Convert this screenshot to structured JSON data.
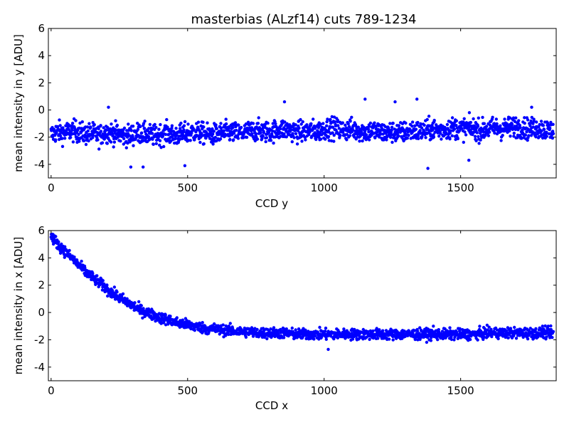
{
  "figure_title": "masterbias (ALzf14) cuts 789-1234",
  "colors": {
    "marker": "#0000ff",
    "axes": "#000000",
    "background": "#ffffff"
  },
  "chart_data": [
    {
      "type": "scatter",
      "title": "masterbias (ALzf14) cuts 789-1234",
      "xlabel": "CCD y",
      "ylabel": "mean intensity in y [ADU]",
      "xlim": [
        -10,
        1850
      ],
      "ylim": [
        -5,
        6
      ],
      "xticks": [
        0,
        500,
        1000,
        1500
      ],
      "yticks": [
        -4,
        -2,
        0,
        2,
        4,
        6
      ],
      "grid": false,
      "series": [
        {
          "x": [
            0,
            25,
            50,
            75,
            100,
            125,
            150,
            175,
            200,
            225,
            250,
            275,
            300,
            325,
            350,
            375,
            400,
            425,
            450,
            475,
            500,
            525,
            550,
            575,
            600,
            625,
            650,
            675,
            700,
            725,
            750,
            775,
            800,
            825,
            850,
            875,
            900,
            925,
            950,
            975,
            1000,
            1025,
            1050,
            1075,
            1100,
            1125,
            1150,
            1175,
            1200,
            1225,
            1250,
            1275,
            1300,
            1325,
            1350,
            1375,
            1400,
            1425,
            1450,
            1475,
            1500,
            1525,
            1550,
            1575,
            1600,
            1625,
            1650,
            1675,
            1700,
            1725,
            1750,
            1775,
            1800,
            1825,
            1840
          ],
          "y": [
            -1.8,
            -1.6,
            -1.7,
            -1.5,
            -1.6,
            -1.8,
            -1.7,
            -1.9,
            -1.6,
            -1.7,
            -1.8,
            -1.9,
            -1.8,
            -1.7,
            -1.8,
            -1.9,
            -1.8,
            -1.7,
            -1.9,
            -1.8,
            -1.7,
            -1.6,
            -1.7,
            -1.8,
            -1.8,
            -1.7,
            -1.6,
            -1.7,
            -1.7,
            -1.6,
            -1.5,
            -1.6,
            -1.6,
            -1.5,
            -1.4,
            -1.5,
            -1.6,
            -1.6,
            -1.5,
            -1.6,
            -1.4,
            -1.3,
            -1.4,
            -1.5,
            -1.4,
            -1.5,
            -1.6,
            -1.5,
            -1.6,
            -1.7,
            -1.6,
            -1.7,
            -1.6,
            -1.5,
            -1.6,
            -1.5,
            -1.4,
            -1.5,
            -1.4,
            -1.3,
            -1.4,
            -1.3,
            -1.4,
            -1.5,
            -1.4,
            -1.3,
            -1.4,
            -1.3,
            -1.2,
            -1.3,
            -1.4,
            -1.3,
            -1.4,
            -1.5,
            -1.4
          ],
          "spread": 0.7,
          "outliers": [
            [
              855,
              0.6
            ],
            [
              1150,
              0.8
            ],
            [
              1260,
              0.6
            ],
            [
              1340,
              0.8
            ],
            [
              292,
              -4.2
            ],
            [
              337,
              -4.2
            ],
            [
              490,
              -4.1
            ],
            [
              1380,
              -4.3
            ],
            [
              1530,
              -3.7
            ],
            [
              210,
              0.2
            ],
            [
              1760,
              0.2
            ]
          ]
        }
      ]
    },
    {
      "type": "scatter",
      "xlabel": "CCD x",
      "ylabel": "mean intensity in x [ADU]",
      "xlim": [
        -10,
        1850
      ],
      "ylim": [
        -5,
        6
      ],
      "xticks": [
        0,
        500,
        1000,
        1500
      ],
      "yticks": [
        -4,
        -2,
        0,
        2,
        4,
        6
      ],
      "grid": false,
      "series": [
        {
          "x": [
            0,
            25,
            50,
            75,
            100,
            125,
            150,
            175,
            200,
            225,
            250,
            275,
            300,
            325,
            350,
            375,
            400,
            425,
            450,
            475,
            500,
            525,
            550,
            575,
            600,
            625,
            650,
            675,
            700,
            725,
            750,
            775,
            800,
            850,
            900,
            950,
            1000,
            1050,
            1100,
            1150,
            1200,
            1250,
            1300,
            1350,
            1400,
            1450,
            1500,
            1550,
            1600,
            1650,
            1700,
            1750,
            1800,
            1840
          ],
          "y": [
            5.6,
            5.0,
            4.5,
            4.0,
            3.5,
            3.0,
            2.6,
            2.2,
            1.8,
            1.4,
            1.1,
            0.8,
            0.5,
            0.2,
            0.0,
            -0.2,
            -0.4,
            -0.5,
            -0.7,
            -0.8,
            -0.9,
            -1.0,
            -1.1,
            -1.2,
            -1.2,
            -1.3,
            -1.3,
            -1.4,
            -1.4,
            -1.4,
            -1.5,
            -1.5,
            -1.5,
            -1.5,
            -1.6,
            -1.6,
            -1.6,
            -1.6,
            -1.6,
            -1.6,
            -1.6,
            -1.6,
            -1.6,
            -1.6,
            -1.6,
            -1.6,
            -1.6,
            -1.6,
            -1.5,
            -1.5,
            -1.5,
            -1.5,
            -1.5,
            -1.5
          ],
          "spread": 0.35,
          "outliers": [
            [
              1015,
              -2.7
            ],
            [
              1400,
              -1.0
            ],
            [
              1800,
              -1.0
            ]
          ]
        }
      ]
    }
  ]
}
